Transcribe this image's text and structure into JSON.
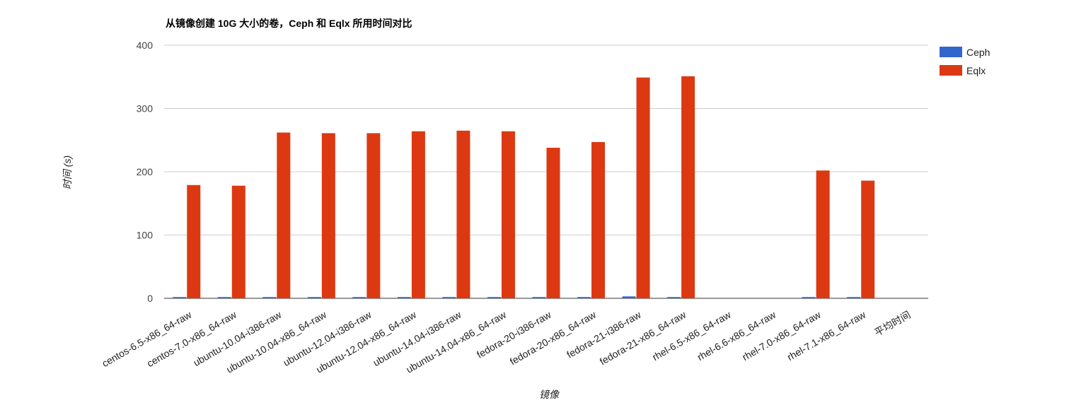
{
  "chart_data": {
    "type": "bar",
    "title": "从镜像创建 10G 大小的卷，Ceph 和 Eqlx 所用时间对比",
    "xlabel": "镜像",
    "ylabel": "时间 (s)",
    "ylim": [
      0,
      400
    ],
    "yticks": [
      "0",
      "100",
      "200",
      "300",
      "400"
    ],
    "grid": true,
    "legend_position": "right",
    "categories": [
      "centos-6.5-x86_64-raw",
      "centos-7.0-x86_64-raw",
      "ubuntu-10.04-i386-raw",
      "ubuntu-10.04-x86_64-raw",
      "ubuntu-12.04-i386-raw",
      "ubuntu-12.04-x86_64-raw",
      "ubuntu-14.04-i386-raw",
      "ubuntu-14.04-x86_64-raw",
      "fedora-20-i386-raw",
      "fedora-20-x86_64-raw",
      "fedora-21-i386-raw",
      "fedora-21-x86_64-raw",
      "rhel-6.5-x86_64-raw",
      "rhel-6.6-x86_64-raw",
      "rhel-7.0-x86_64-raw",
      "rhel-7.1-x86_64-raw",
      "平均时间"
    ],
    "series": [
      {
        "name": "Ceph",
        "color": "#3366cc",
        "values": [
          2,
          2,
          2,
          2,
          2,
          2,
          2,
          2,
          2,
          2,
          3,
          2,
          0,
          0,
          2,
          2,
          0
        ]
      },
      {
        "name": "Eqlx",
        "color": "#dc3912",
        "values": [
          179,
          178,
          262,
          261,
          261,
          264,
          265,
          264,
          238,
          247,
          349,
          351,
          0,
          0,
          202,
          186,
          0
        ]
      }
    ]
  }
}
